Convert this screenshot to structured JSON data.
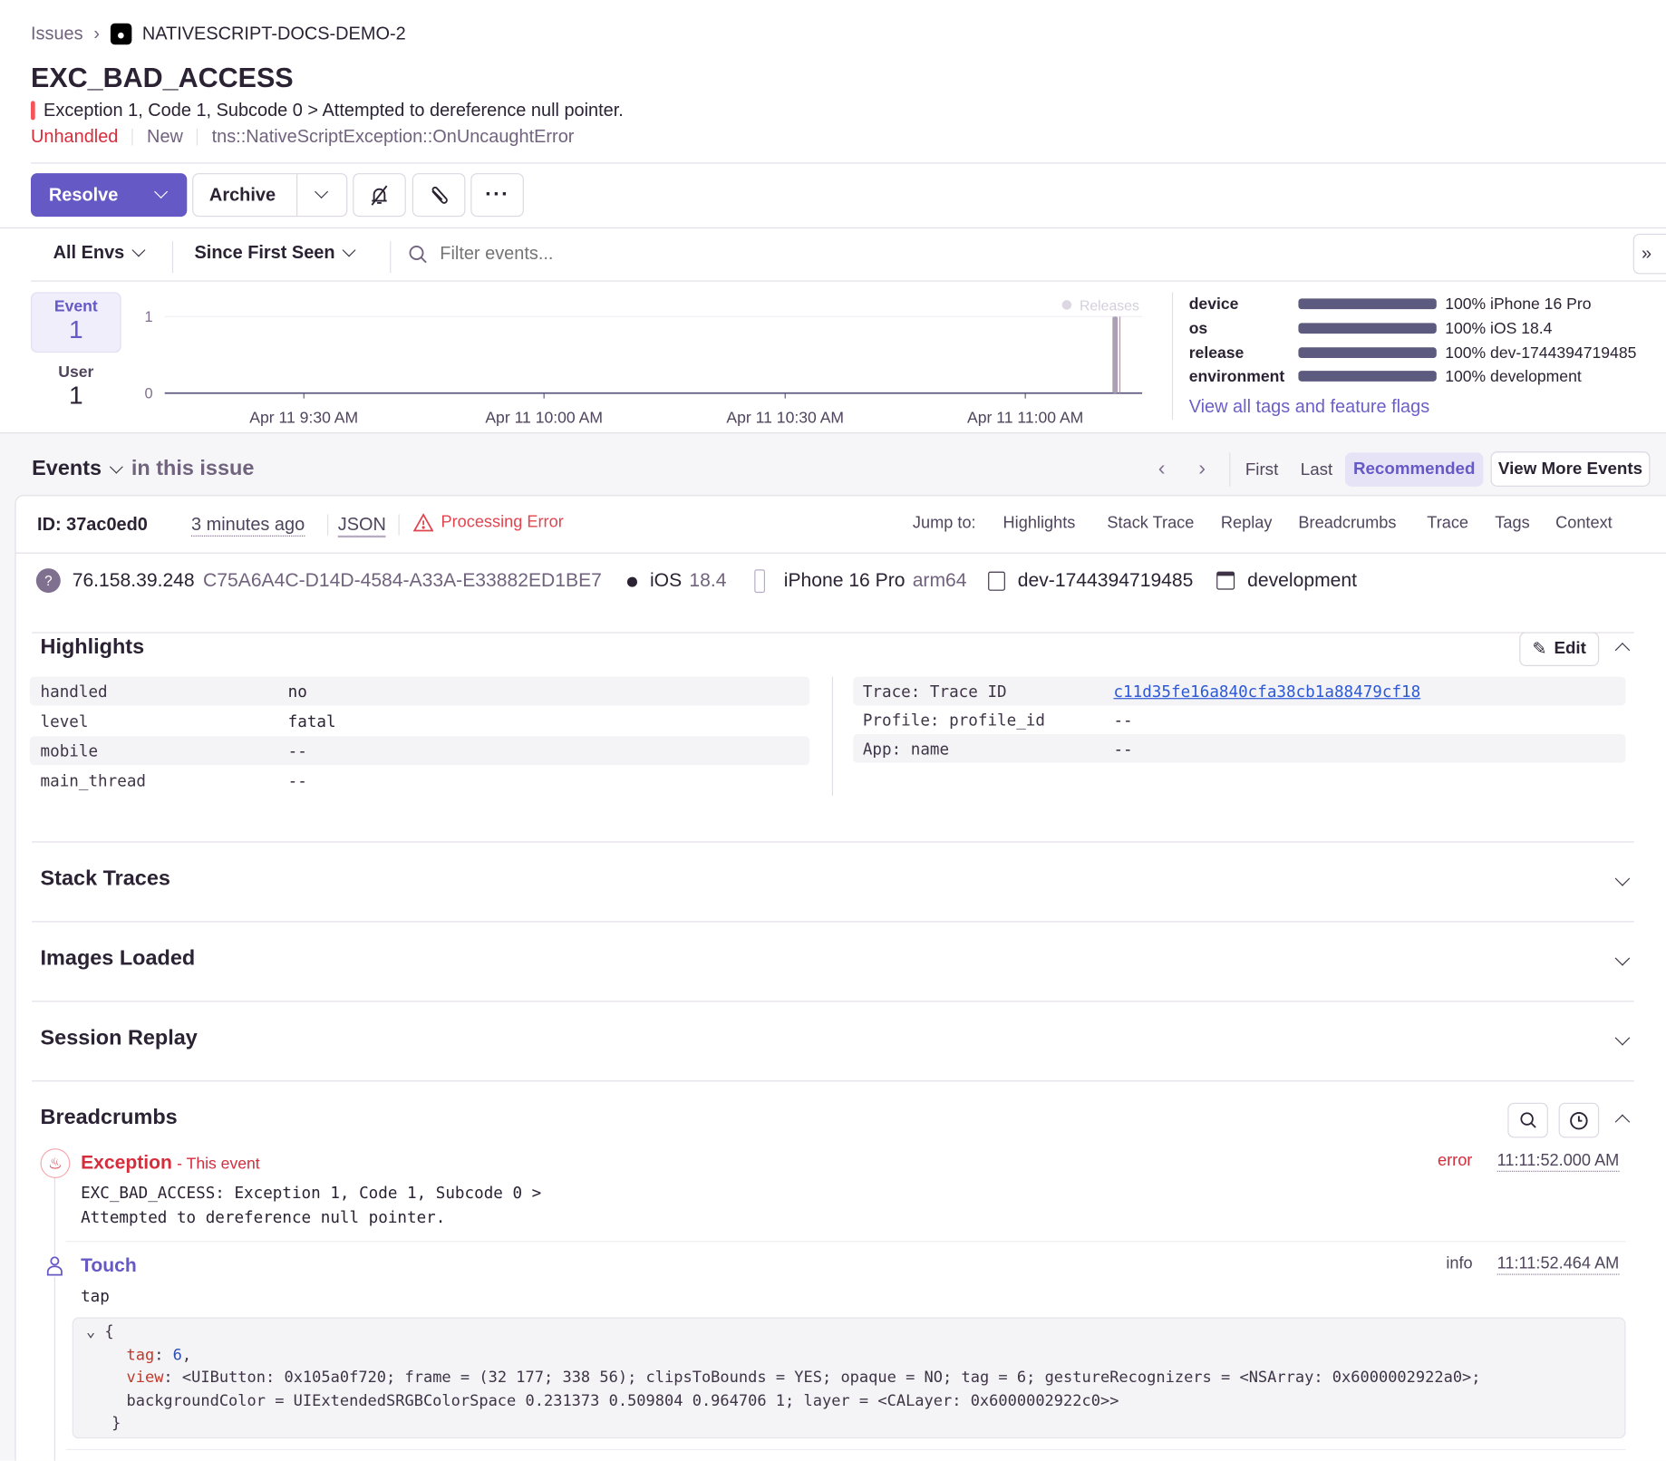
{
  "breadcrumb": {
    "parent": "Issues",
    "project": "NATIVESCRIPT-DOCS-DEMO-2",
    "project_icon": "apple-logo-icon"
  },
  "issue": {
    "title": "EXC_BAD_ACCESS",
    "message": "Exception 1, Code 1, Subcode 0 > Attempted to dereference null pointer.",
    "handled_status": "Unhandled",
    "state": "New",
    "culprit": "tns::NativeScriptException::OnUncaughtError"
  },
  "actions": {
    "resolve": "Resolve",
    "archive": "Archive",
    "mute_icon": "bell-slash-icon",
    "link_icon": "paperclip-icon",
    "more_icon": "ellipsis-icon"
  },
  "filters": {
    "env": "All Envs",
    "period": "Since First Seen",
    "search_placeholder": "Filter events..."
  },
  "counts": {
    "event_label": "Event",
    "event_value": "1",
    "user_label": "User",
    "user_value": "1"
  },
  "chart_data": {
    "type": "bar",
    "y_ticks": [
      "0",
      "1"
    ],
    "ylim": [
      0,
      1
    ],
    "x_ticks": [
      "Apr 11 9:30 AM",
      "Apr 11 10:00 AM",
      "Apr 11 10:30 AM",
      "Apr 11 11:00 AM"
    ],
    "legend": "Releases",
    "bars": [
      {
        "x": "Apr 11 11:11 AM",
        "value": 1
      }
    ],
    "colors": {
      "bar": "#aaa2b4",
      "release": "#f2769e"
    }
  },
  "tags": [
    {
      "key": "device",
      "percent": 100,
      "value": "100% iPhone 16 Pro"
    },
    {
      "key": "os",
      "percent": 100,
      "value": "100% iOS 18.4"
    },
    {
      "key": "release",
      "percent": 100,
      "value": "100% dev-1744394719485"
    },
    {
      "key": "environment",
      "percent": 100,
      "value": "100% development"
    }
  ],
  "tags_link": "View all tags and feature flags",
  "events_nav": {
    "title": "Events",
    "subtitle": "in this issue",
    "first": "First",
    "last": "Last",
    "recommended": "Recommended",
    "view_more": "View More Events"
  },
  "event": {
    "id": "ID: 37ac0ed0",
    "time": "3 minutes ago",
    "json": "JSON",
    "processing_error": "Processing Error",
    "jump_to": "Jump to:",
    "jump_links": [
      "Highlights",
      "Stack Trace",
      "Replay",
      "Breadcrumbs",
      "Trace",
      "Tags",
      "Context"
    ]
  },
  "context": {
    "ip": "76.158.39.248",
    "device_id": "C75A6A4C-D14D-4584-A33A-E33882ED1BE7",
    "os": "iOS",
    "os_version": "18.4",
    "device": "iPhone 16 Pro",
    "arch": "arm64",
    "release": "dev-1744394719485",
    "environment": "development"
  },
  "highlights": {
    "title": "Highlights",
    "edit": "Edit",
    "left": [
      {
        "k": "handled",
        "v": "no"
      },
      {
        "k": "level",
        "v": "fatal"
      },
      {
        "k": "mobile",
        "v": "--"
      },
      {
        "k": "main_thread",
        "v": "--"
      }
    ],
    "right": [
      {
        "k": "Trace: Trace ID",
        "v": "c11d35fe16a840cfa38cb1a88479cf18"
      },
      {
        "k": "Profile: profile_id",
        "v": "--"
      },
      {
        "k": "App: name",
        "v": "--"
      }
    ]
  },
  "sections": [
    "Stack Traces",
    "Images Loaded",
    "Session Replay"
  ],
  "breadcrumbs": {
    "title": "Breadcrumbs",
    "items": [
      {
        "type": "Exception",
        "suffix": "- This event",
        "level": "error",
        "time": "11:11:52.000 AM",
        "line1": "EXC_BAD_ACCESS: Exception 1, Code 1, Subcode 0 >",
        "line2": "Attempted to dereference null pointer."
      },
      {
        "type": "Touch",
        "level": "info",
        "time": "11:11:52.464 AM",
        "message": "tap",
        "data": {
          "tag_key": "tag",
          "tag_val": "6",
          "view_key": "view",
          "view_val1": "<UIButton: 0x105a0f720; frame = (32 177; 338 56); clipsToBounds = YES; opaque = NO; tag = 6; gestureRecognizers = <NSArray: 0x6000002922a0>;",
          "view_val2": "backgroundColor = UIExtendedSRGBColorSpace 0.231373 0.509804 0.964706 1; layer = <CALayer: 0x6000002922c0>>"
        }
      }
    ]
  },
  "colors": {
    "accent": "#6559c5",
    "error": "#d52d3c",
    "link": "#6c5fc7"
  }
}
